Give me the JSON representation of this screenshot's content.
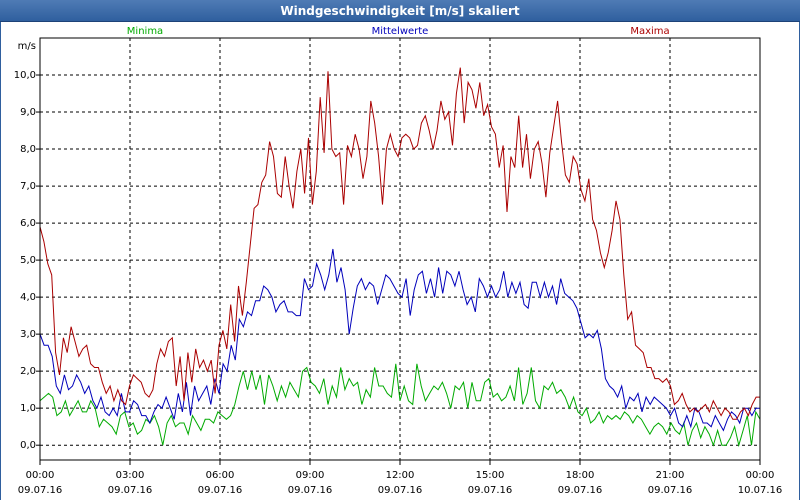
{
  "window": {
    "title": "Windgeschwindigkeit [m/s] skaliert"
  },
  "chart_data": {
    "type": "line",
    "title": "Windgeschwindigkeit [m/s] skaliert",
    "ylabel": "m/s",
    "ylim": [
      -0.4,
      11.0
    ],
    "xlim": [
      0,
      24
    ],
    "grid": true,
    "y_ticks": [
      "0,0",
      "1,0",
      "2,0",
      "3,0",
      "4,0",
      "5,0",
      "6,0",
      "7,0",
      "8,0",
      "9,0",
      "10,0"
    ],
    "x_ticks": [
      {
        "time": "00:00",
        "date": "09.07.16"
      },
      {
        "time": "03:00",
        "date": "09.07.16"
      },
      {
        "time": "06:00",
        "date": "09.07.16"
      },
      {
        "time": "09:00",
        "date": "09.07.16"
      },
      {
        "time": "12:00",
        "date": "09.07.16"
      },
      {
        "time": "15:00",
        "date": "09.07.16"
      },
      {
        "time": "18:00",
        "date": "09.07.16"
      },
      {
        "time": "21:00",
        "date": "09.07.16"
      },
      {
        "time": "00:00",
        "date": "10.07.16"
      }
    ],
    "legend_placement": "top",
    "series": [
      {
        "name": "Minima",
        "color": "#00aa00",
        "values": [
          1.2,
          1.3,
          1.4,
          1.3,
          0.8,
          0.9,
          1.2,
          0.8,
          1.0,
          1.2,
          0.9,
          0.9,
          1.2,
          1.0,
          0.5,
          0.7,
          0.6,
          0.5,
          0.3,
          0.8,
          0.9,
          0.5,
          0.6,
          0.3,
          0.4,
          0.7,
          0.6,
          0.8,
          0.5,
          0.0,
          0.6,
          0.8,
          0.5,
          0.6,
          0.6,
          0.3,
          0.8,
          0.6,
          0.4,
          0.7,
          0.7,
          0.6,
          0.9,
          0.8,
          0.7,
          0.8,
          1.1,
          1.6,
          2.0,
          1.5,
          2.0,
          1.5,
          1.9,
          1.1,
          1.9,
          1.6,
          1.2,
          1.6,
          1.3,
          1.7,
          1.5,
          1.3,
          2.0,
          2.1,
          1.7,
          1.6,
          1.4,
          1.8,
          1.1,
          1.6,
          1.3,
          2.1,
          1.5,
          1.8,
          1.6,
          1.7,
          1.1,
          1.5,
          1.3,
          2.1,
          1.6,
          1.6,
          1.4,
          1.3,
          2.2,
          1.2,
          1.6,
          1.2,
          1.1,
          2.2,
          1.6,
          1.2,
          1.4,
          1.6,
          1.5,
          1.7,
          1.4,
          1.0,
          1.6,
          1.5,
          1.7,
          1.0,
          1.7,
          1.2,
          1.2,
          1.7,
          1.8,
          1.3,
          1.4,
          1.2,
          1.3,
          1.6,
          1.2,
          2.1,
          1.1,
          1.4,
          2.1,
          1.2,
          1.0,
          1.6,
          1.5,
          1.7,
          1.4,
          1.5,
          1.3,
          1.0,
          1.3,
          0.9,
          0.8,
          1.0,
          0.6,
          0.7,
          0.9,
          0.6,
          0.8,
          0.7,
          0.8,
          0.7,
          0.9,
          0.8,
          0.6,
          0.8,
          0.7,
          0.5,
          0.3,
          0.5,
          0.6,
          0.5,
          0.3,
          0.6,
          0.4,
          0.3,
          0.6,
          0.0,
          0.4,
          0.6,
          0.2,
          0.5,
          0.3,
          0.0,
          0.4,
          0.0,
          0.0,
          0.2,
          0.5,
          0.0,
          0.4,
          0.8,
          0.0,
          0.9,
          0.7
        ]
      },
      {
        "name": "Mittelwerte",
        "color": "#0000bb",
        "values": [
          3.0,
          2.7,
          2.7,
          2.4,
          1.6,
          1.4,
          1.9,
          1.5,
          1.6,
          1.9,
          1.7,
          1.4,
          1.6,
          1.2,
          1.0,
          1.3,
          0.9,
          0.8,
          1.0,
          0.8,
          1.4,
          0.9,
          0.9,
          1.2,
          1.1,
          0.8,
          0.8,
          0.6,
          0.9,
          1.1,
          1.0,
          1.3,
          1.0,
          0.7,
          1.4,
          0.9,
          1.7,
          0.8,
          1.6,
          1.2,
          1.4,
          1.6,
          1.1,
          1.8,
          1.4,
          2.2,
          2.0,
          2.7,
          2.3,
          3.4,
          3.2,
          3.6,
          3.5,
          3.9,
          3.9,
          4.3,
          4.2,
          4.0,
          3.6,
          3.8,
          3.9,
          3.6,
          3.6,
          3.5,
          3.5,
          4.5,
          4.2,
          4.3,
          4.9,
          4.6,
          4.2,
          4.6,
          5.3,
          4.4,
          4.8,
          4.2,
          3.0,
          3.7,
          4.3,
          4.5,
          4.2,
          4.4,
          4.3,
          3.8,
          4.2,
          4.6,
          4.5,
          4.3,
          4.1,
          4.0,
          4.5,
          3.5,
          4.2,
          4.6,
          4.7,
          4.1,
          4.5,
          4.0,
          4.8,
          4.1,
          4.7,
          4.6,
          4.3,
          4.7,
          4.2,
          3.8,
          4.0,
          3.6,
          4.5,
          4.3,
          4.0,
          4.3,
          4.0,
          4.2,
          4.7,
          4.0,
          4.4,
          4.1,
          4.4,
          3.8,
          3.7,
          4.4,
          4.4,
          4.0,
          4.4,
          4.0,
          4.3,
          3.8,
          4.5,
          4.1,
          4.0,
          3.9,
          3.7,
          3.3,
          2.9,
          3.0,
          2.9,
          3.1,
          2.6,
          1.8,
          1.6,
          1.5,
          1.3,
          1.6,
          1.0,
          1.3,
          1.2,
          1.4,
          0.9,
          1.3,
          1.1,
          1.3,
          1.2,
          1.1,
          1.0,
          0.8,
          1.0,
          0.6,
          0.5,
          0.8,
          0.5,
          1.0,
          0.9,
          0.6,
          0.6,
          0.5,
          0.8,
          0.6,
          0.4,
          0.7,
          0.9,
          0.8,
          0.6,
          1.0,
          1.0,
          0.8,
          1.0,
          1.0
        ]
      },
      {
        "name": "Maxima",
        "color": "#aa0000",
        "values": [
          5.9,
          5.5,
          4.9,
          4.6,
          2.5,
          1.9,
          2.9,
          2.5,
          3.2,
          2.8,
          2.4,
          2.6,
          2.7,
          2.2,
          2.1,
          2.1,
          1.7,
          1.4,
          1.6,
          1.2,
          1.5,
          1.2,
          1.1,
          1.6,
          1.9,
          1.8,
          1.7,
          1.4,
          1.3,
          1.5,
          2.2,
          2.6,
          2.4,
          2.8,
          2.9,
          1.6,
          2.4,
          1.2,
          2.5,
          1.7,
          2.6,
          2.1,
          2.3,
          2.0,
          2.3,
          1.4,
          2.7,
          3.1,
          2.6,
          3.8,
          2.8,
          4.3,
          3.5,
          4.4,
          5.4,
          6.4,
          6.5,
          7.1,
          7.3,
          8.2,
          7.8,
          6.8,
          6.7,
          7.8,
          7.0,
          6.4,
          7.4,
          8.0,
          6.8,
          8.3,
          6.5,
          7.4,
          9.4,
          7.9,
          10.1,
          8.0,
          7.8,
          7.9,
          6.5,
          8.1,
          7.8,
          8.4,
          8.0,
          7.2,
          7.8,
          9.3,
          8.7,
          7.8,
          6.5,
          8.0,
          8.4,
          8.0,
          7.8,
          8.3,
          8.4,
          8.3,
          8.0,
          8.1,
          8.7,
          8.9,
          8.5,
          8.0,
          8.5,
          9.3,
          8.8,
          9.0,
          8.1,
          9.5,
          10.2,
          8.7,
          9.8,
          9.6,
          9.1,
          9.8,
          8.9,
          9.2,
          8.6,
          8.4,
          7.5,
          8.1,
          6.3,
          7.8,
          7.5,
          8.9,
          7.5,
          8.4,
          7.2,
          8.0,
          8.2,
          7.6,
          6.7,
          7.9,
          8.6,
          9.3,
          8.2,
          7.3,
          7.1,
          7.8,
          7.6,
          6.9,
          6.6,
          7.2,
          6.1,
          5.8,
          5.2,
          4.8,
          5.2,
          5.8,
          6.6,
          6.1,
          4.6,
          3.4,
          3.6,
          2.7,
          2.6,
          2.5,
          2.1,
          2.1,
          1.8,
          1.8,
          1.7,
          1.8,
          1.6,
          1.1,
          1.2,
          1.4,
          1.1,
          0.9,
          1.0,
          0.9,
          1.0,
          1.1,
          0.9,
          1.2,
          1.0,
          0.8,
          1.0,
          0.9,
          0.7,
          0.7,
          0.9,
          1.0,
          0.8,
          1.1,
          1.3,
          1.3
        ]
      }
    ]
  }
}
